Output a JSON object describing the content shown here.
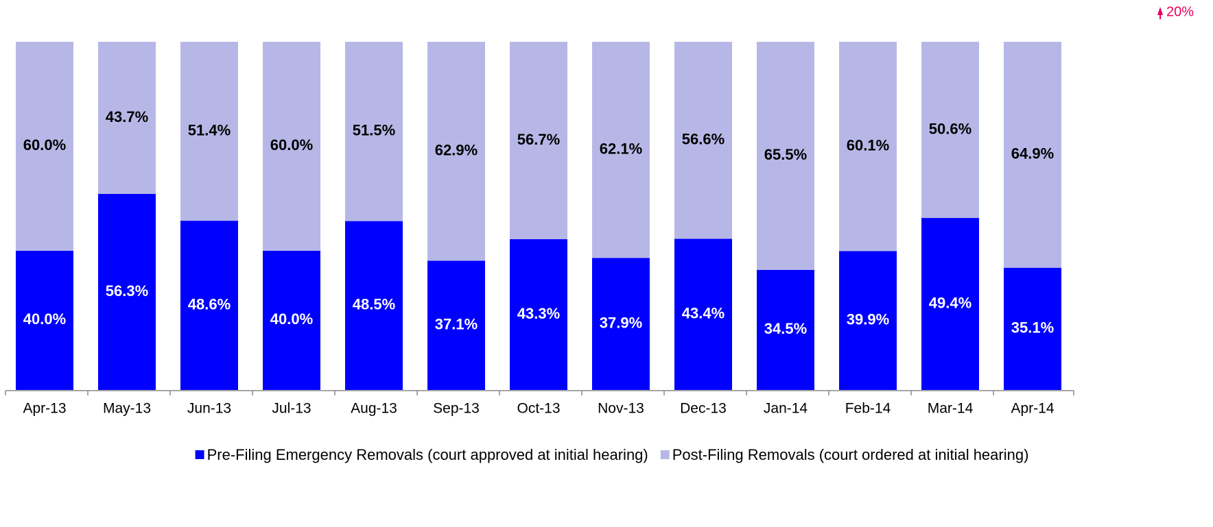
{
  "chart_data": {
    "type": "stacked_bar",
    "annotation": "20%",
    "categories": [
      "Apr-13",
      "May-13",
      "Jun-13",
      "Jul-13",
      "Aug-13",
      "Sep-13",
      "Oct-13",
      "Nov-13",
      "Dec-13",
      "Jan-14",
      "Feb-14",
      "Mar-14",
      "Apr-14"
    ],
    "ylim": [
      0,
      100
    ],
    "series": [
      {
        "name": "Pre-Filing Emergency Removals (court approved at initial hearing)",
        "color": "#0000ff",
        "label_color": "#ffffff",
        "values": [
          40.0,
          56.3,
          48.6,
          40.0,
          48.5,
          37.1,
          43.3,
          37.9,
          43.4,
          34.5,
          39.9,
          49.4,
          35.1
        ],
        "value_labels": [
          "40.0%",
          "56.3%",
          "48.6%",
          "40.0%",
          "48.5%",
          "37.1%",
          "43.3%",
          "37.9%",
          "43.4%",
          "34.5%",
          "39.9%",
          "49.4%",
          "35.1%"
        ]
      },
      {
        "name": "Post-Filing Removals (court ordered at initial hearing)",
        "color": "#b7b7e7",
        "label_color": "#000000",
        "values": [
          60.0,
          43.7,
          51.4,
          60.0,
          51.5,
          62.9,
          56.7,
          62.1,
          56.6,
          65.5,
          60.1,
          50.6,
          64.9
        ],
        "value_labels": [
          "60.0%",
          "43.7%",
          "51.4%",
          "60.0%",
          "51.5%",
          "62.9%",
          "56.7%",
          "62.1%",
          "56.6%",
          "65.5%",
          "60.1%",
          "50.6%",
          "64.9%"
        ]
      }
    ],
    "legend": "bottom"
  }
}
